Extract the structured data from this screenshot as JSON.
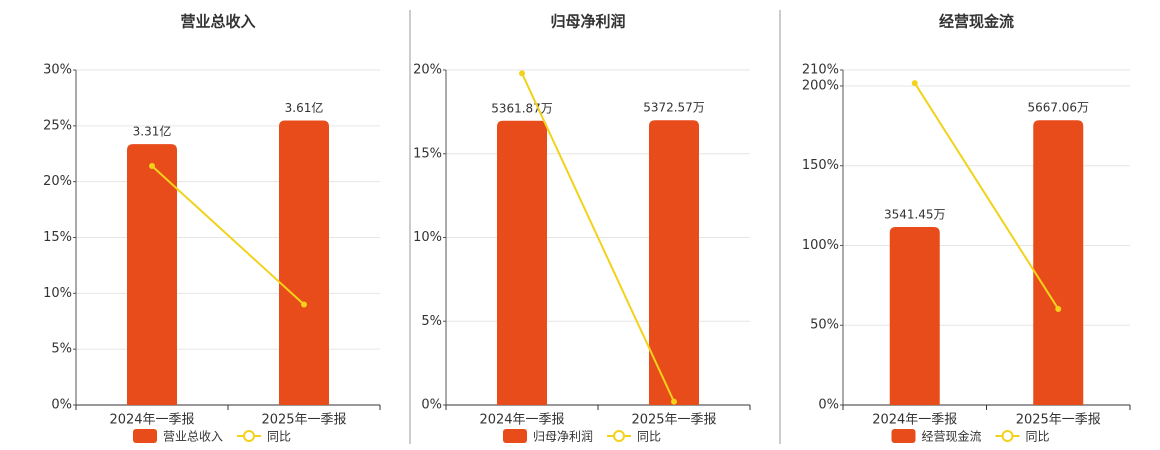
{
  "chart_data": [
    {
      "type": "bar",
      "title": "营业总收入",
      "categories": [
        "2024年一季报",
        "2025年一季报"
      ],
      "series": [
        {
          "name": "营业总收入",
          "color": "#e84c1a",
          "values": [
            3.31,
            3.61
          ],
          "value_labels": [
            "3.31亿",
            "3.61亿"
          ]
        },
        {
          "name": "同比",
          "type": "line",
          "axis": "y2",
          "color": "#f2d21b",
          "values": [
            21.4,
            9.0
          ]
        }
      ],
      "ylim": [
        0,
        4.25
      ],
      "y2lim": [
        0,
        30
      ],
      "y2ticks": [
        {
          "value": 0,
          "label": "0%"
        },
        {
          "value": 5,
          "label": "5%"
        },
        {
          "value": 10,
          "label": "10%"
        },
        {
          "value": 15,
          "label": "15%"
        },
        {
          "value": 20,
          "label": "20%"
        },
        {
          "value": 25,
          "label": "25%"
        },
        {
          "value": 30,
          "label": "30%"
        }
      ],
      "grid": true
    },
    {
      "type": "bar",
      "title": "归母净利润",
      "categories": [
        "2024年一季报",
        "2025年一季报"
      ],
      "series": [
        {
          "name": "归母净利润",
          "color": "#e84c1a",
          "values": [
            5361.87,
            5372.57
          ],
          "value_labels": [
            "5361.87万",
            "5372.57万"
          ]
        },
        {
          "name": "同比",
          "type": "line",
          "axis": "y2",
          "color": "#f2d21b",
          "values": [
            19.8,
            0.2
          ]
        }
      ],
      "ylim": [
        0,
        6320
      ],
      "y2lim": [
        0,
        20
      ],
      "y2ticks": [
        {
          "value": 0,
          "label": "0%"
        },
        {
          "value": 5,
          "label": "5%"
        },
        {
          "value": 10,
          "label": "10%"
        },
        {
          "value": 15,
          "label": "15%"
        },
        {
          "value": 20,
          "label": "20%"
        }
      ],
      "grid": true
    },
    {
      "type": "bar",
      "title": "经营现金流",
      "categories": [
        "2024年一季报",
        "2025年一季报"
      ],
      "series": [
        {
          "name": "经营现金流",
          "color": "#e84c1a",
          "values": [
            3541.45,
            5667.06
          ],
          "value_labels": [
            "3541.45万",
            "5667.06万"
          ]
        },
        {
          "name": "同比",
          "type": "line",
          "axis": "y2",
          "color": "#f2d21b",
          "values": [
            201.8,
            60.2
          ]
        }
      ],
      "ylim": [
        0,
        6667
      ],
      "y2lim": [
        0,
        210
      ],
      "y2ticks": [
        {
          "value": 0,
          "label": "0%"
        },
        {
          "value": 50,
          "label": "50%"
        },
        {
          "value": 100,
          "label": "100%"
        },
        {
          "value": 150,
          "label": "150%"
        },
        {
          "value": 200,
          "label": "200%"
        },
        {
          "value": 210,
          "label": "210%"
        }
      ],
      "grid": true
    }
  ]
}
